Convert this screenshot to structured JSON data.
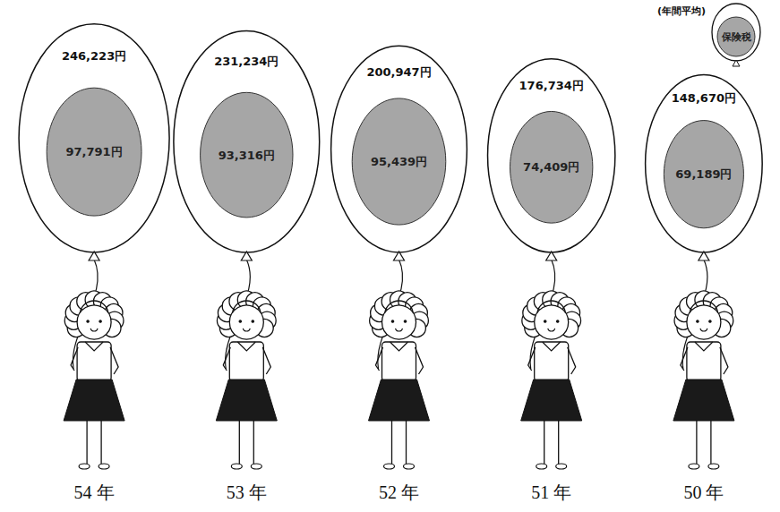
{
  "chart_data": {
    "type": "balloon",
    "subtitle": "(年間平均)",
    "categories": [
      "54 年",
      "53 年",
      "52 年",
      "51 年",
      "50 年"
    ],
    "series": [
      {
        "values": [
          246223,
          231234,
          200947,
          176734,
          148670
        ],
        "value_labels": [
          "246,223円",
          "231,234円",
          "200,947円",
          "176,734円",
          "148,670円"
        ],
        "color": "#ffffff"
      },
      {
        "name": "保険税",
        "values": [
          97791,
          93316,
          95439,
          74409,
          69189
        ],
        "value_labels": [
          "97,791円",
          "93,316円",
          "95,439円",
          "74,409円",
          "69,189円"
        ],
        "color": "#a6a6a6"
      }
    ],
    "data_labels": true,
    "tick_labels": "x",
    "legend": "upper right"
  }
}
